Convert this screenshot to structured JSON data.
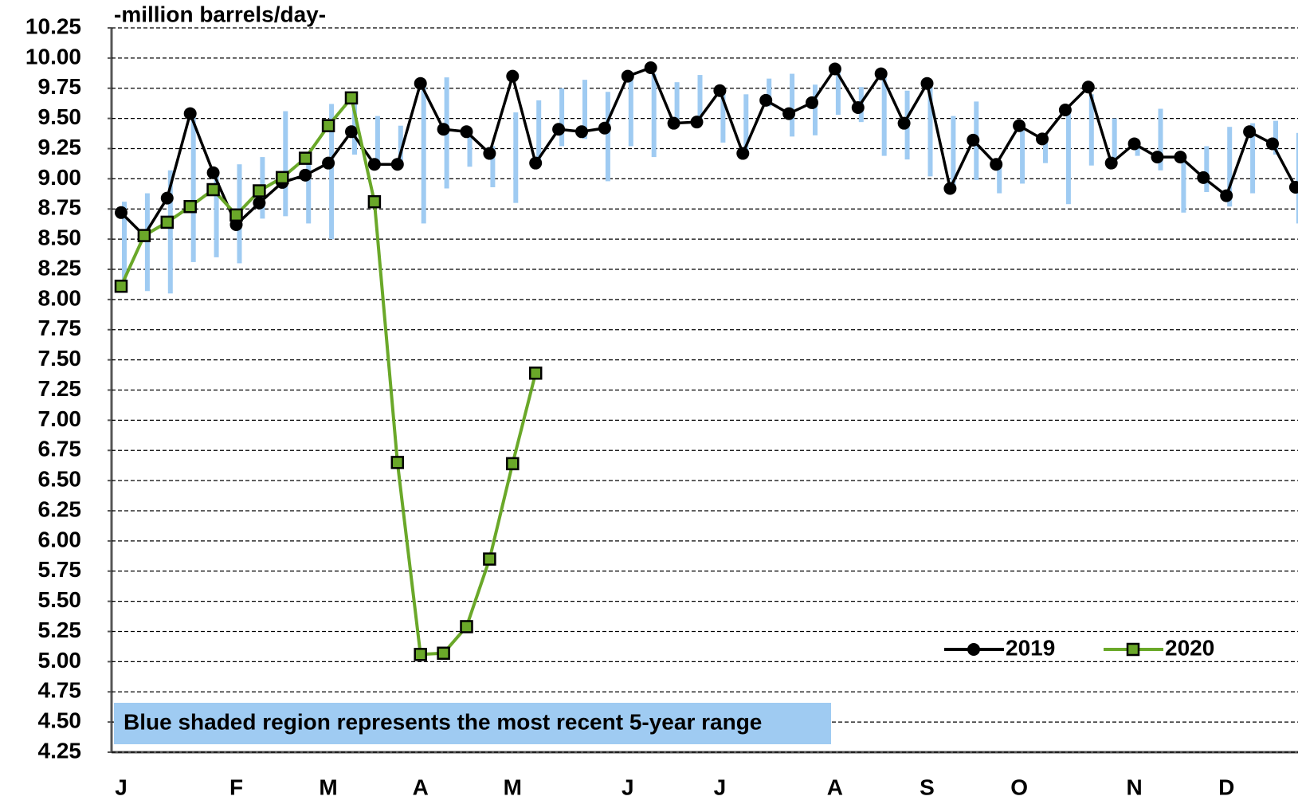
{
  "chart_data": {
    "type": "line",
    "annotations": [
      "-million barrels/day-",
      "Blue shaded region represents the most recent 5-year range"
    ],
    "categories": [
      "J",
      null,
      null,
      null,
      null,
      "F",
      null,
      null,
      null,
      "M",
      null,
      null,
      null,
      "A",
      null,
      null,
      null,
      "M",
      null,
      null,
      null,
      null,
      "J",
      null,
      null,
      null,
      "J",
      null,
      null,
      null,
      null,
      "A",
      null,
      null,
      null,
      "S",
      null,
      null,
      null,
      "O",
      null,
      null,
      null,
      null,
      "N",
      null,
      null,
      null,
      "D",
      null,
      null,
      null
    ],
    "series": [
      {
        "name": "2019",
        "color": "#000000",
        "marker": "circle",
        "values": [
          8.72,
          8.53,
          8.84,
          9.54,
          9.05,
          8.62,
          8.8,
          8.97,
          9.03,
          9.13,
          9.39,
          9.12,
          9.12,
          9.79,
          9.41,
          9.39,
          9.21,
          9.85,
          9.13,
          9.41,
          9.39,
          9.42,
          9.85,
          9.92,
          9.46,
          9.47,
          9.73,
          9.21,
          9.65,
          9.54,
          9.63,
          9.91,
          9.59,
          9.87,
          9.46,
          9.79,
          8.92,
          9.32,
          9.12,
          9.44,
          9.33,
          9.57,
          9.76,
          9.13,
          9.29,
          9.18,
          9.18,
          9.01,
          8.86,
          9.39,
          9.29,
          8.93
        ]
      },
      {
        "name": "2020",
        "color": "#6aa829",
        "marker": "square",
        "values": [
          8.11,
          8.53,
          8.64,
          8.77,
          8.91,
          8.7,
          8.9,
          9.01,
          9.17,
          9.44,
          9.67,
          8.81,
          6.65,
          5.06,
          5.07,
          5.29,
          5.85,
          6.64,
          7.39,
          null,
          null,
          null,
          null,
          null,
          null,
          null,
          null,
          null,
          null,
          null,
          null,
          null,
          null,
          null,
          null,
          null,
          null,
          null,
          null,
          null,
          null,
          null,
          null,
          null,
          null,
          null,
          null,
          null,
          null,
          null,
          null,
          null
        ]
      }
    ],
    "range": {
      "color": "#9fcbf2",
      "low": [
        8.12,
        8.07,
        8.05,
        8.31,
        8.35,
        8.3,
        8.67,
        8.69,
        8.63,
        8.5,
        9.2,
        9.1,
        9.12,
        8.63,
        8.92,
        9.1,
        8.93,
        8.8,
        9.15,
        9.27,
        9.33,
        8.98,
        9.27,
        9.18,
        9.48,
        9.46,
        9.3,
        9.2,
        9.6,
        9.35,
        9.36,
        9.53,
        9.47,
        9.19,
        9.16,
        9.02,
        8.93,
        8.99,
        8.88,
        8.96,
        9.13,
        8.79,
        9.11,
        9.17,
        9.19,
        9.07,
        8.72,
        8.89,
        8.77,
        8.88,
        9.2,
        8.63
      ],
      "high": [
        8.81,
        8.88,
        9.07,
        9.53,
        9.05,
        9.12,
        9.18,
        9.56,
        9.2,
        9.62,
        9.65,
        9.52,
        9.44,
        9.79,
        9.84,
        9.4,
        9.27,
        9.55,
        9.65,
        9.75,
        9.82,
        9.72,
        9.82,
        9.87,
        9.8,
        9.86,
        9.73,
        9.7,
        9.83,
        9.87,
        9.78,
        9.91,
        9.76,
        9.87,
        9.73,
        9.8,
        9.52,
        9.64,
        9.13,
        9.45,
        9.38,
        9.59,
        9.7,
        9.5,
        9.29,
        9.58,
        9.17,
        9.27,
        9.43,
        9.46,
        9.48,
        9.38
      ]
    },
    "ylim": [
      4.25,
      10.25
    ],
    "yticks": [
      {
        "value": 4.25,
        "label": "4.25"
      },
      {
        "value": 4.5,
        "label": "4.50"
      },
      4.75,
      {
        "value": 5,
        "label": "5.00"
      },
      5.25,
      {
        "value": 5.5,
        "label": "5.50"
      },
      5.75,
      {
        "value": 6,
        "label": "6.00"
      },
      6.25,
      {
        "value": 6.5,
        "label": "6.50"
      },
      6.75,
      {
        "value": 7,
        "label": "7.00"
      },
      7.25,
      {
        "value": 7.5,
        "label": "7.50"
      },
      7.75,
      {
        "value": 8,
        "label": "8.00"
      },
      8.25,
      {
        "value": 8.5,
        "label": "8.50"
      },
      8.75,
      {
        "value": 9,
        "label": "9.00"
      },
      9.25,
      {
        "value": 9.5,
        "label": "9.50"
      },
      9.75,
      {
        "value": 10,
        "label": "10.00"
      },
      10.25
    ],
    "grid": true,
    "legend": "lower right"
  }
}
